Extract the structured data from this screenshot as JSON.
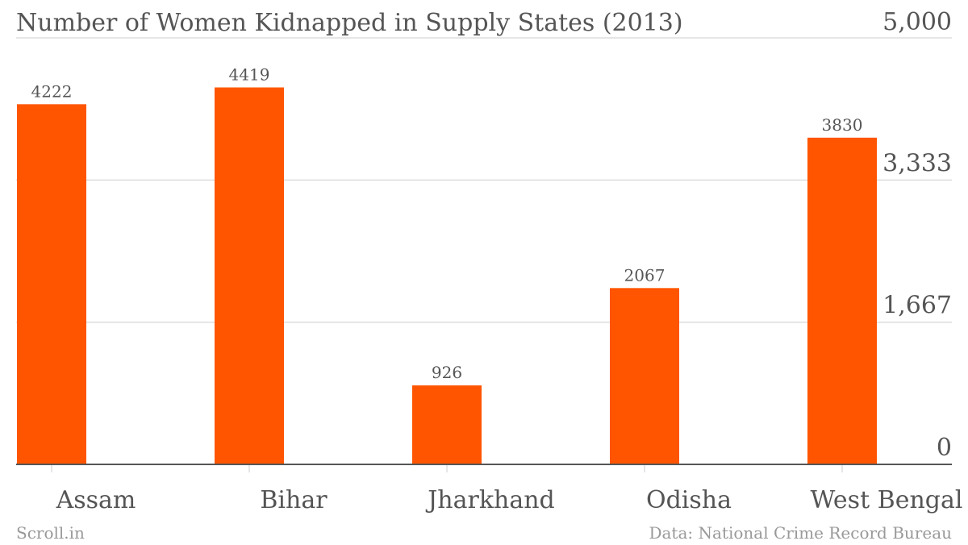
{
  "chart_data": {
    "type": "bar",
    "title": "Number of Women Kidnapped in Supply States (2013)",
    "categories": [
      "Assam",
      "Bihar",
      "Jharkhand",
      "Odisha",
      "West Bengal"
    ],
    "values": [
      4222,
      4419,
      926,
      2067,
      3830
    ],
    "data_labels": [
      "4222",
      "4419",
      "926",
      "2067",
      "3830"
    ],
    "ylim": [
      0,
      5000
    ],
    "yticks": [
      0,
      1667,
      3333,
      5000
    ],
    "ytick_labels": [
      "0",
      "1,667",
      "3,333",
      "5,000"
    ],
    "grid": true,
    "legend": "none",
    "xlabel": "",
    "ylabel": ""
  },
  "footer": {
    "source_left": "Scroll.in",
    "source_right": "Data: National Crime Record Bureau"
  },
  "colors": {
    "bar": "#ff5500",
    "grid": "#dddddd",
    "axis": "#555555",
    "text": "#555555",
    "footer": "#999999"
  }
}
